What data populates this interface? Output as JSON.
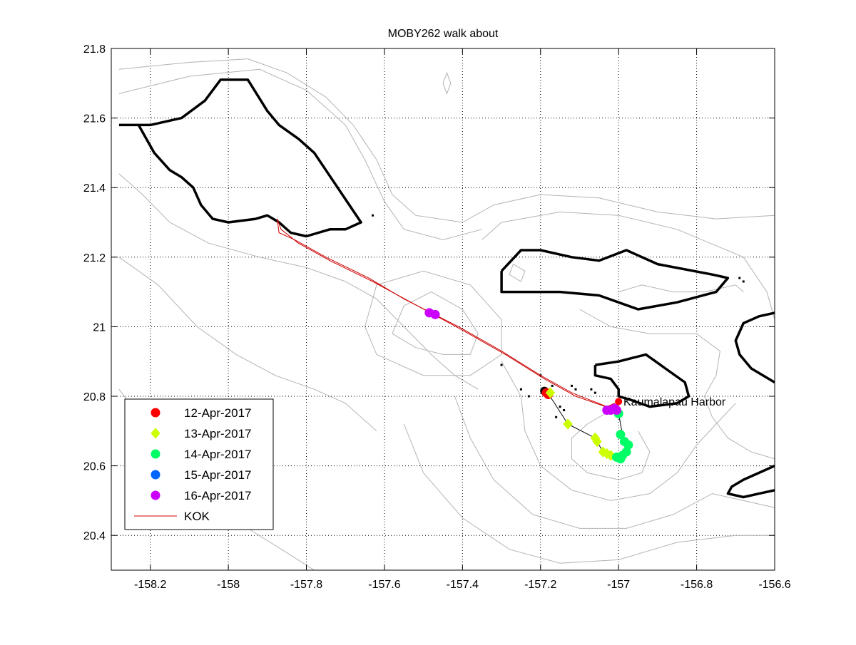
{
  "chart_data": {
    "type": "scatter",
    "title": "MOBY262 walk about",
    "xlabel": "",
    "ylabel": "",
    "xlim": [
      -158.3,
      -156.6
    ],
    "ylim": [
      20.3,
      21.8
    ],
    "xticks": [
      -158.2,
      -158.0,
      -157.8,
      -157.6,
      -157.4,
      -157.2,
      -157.0,
      -156.8,
      -156.6
    ],
    "xtick_labels": [
      "-158.2",
      "-158",
      "-157.8",
      "-157.6",
      "-157.4",
      "-157.2",
      "-157",
      "-156.8",
      "-156.6"
    ],
    "yticks": [
      20.4,
      20.6,
      20.8,
      21.0,
      21.2,
      21.4,
      21.6,
      21.8
    ],
    "ytick_labels": [
      "20.4",
      "20.6",
      "20.8",
      "21",
      "21.2",
      "21.4",
      "21.6",
      "21.8"
    ],
    "grid": true,
    "legend_position": "bottom-left",
    "annotation": {
      "text": "Kaumalapau Harbor",
      "x": -157.0,
      "y": 20.785
    },
    "series": [
      {
        "name": "12-Apr-2017",
        "marker": "circle",
        "color": "#ff0000",
        "points": [
          [
            -157.185,
            20.81
          ],
          [
            -157.18,
            20.805
          ]
        ]
      },
      {
        "name": "13-Apr-2017",
        "marker": "diamond",
        "color": "#ccff00",
        "points": [
          [
            -157.175,
            20.81
          ],
          [
            -157.13,
            20.72
          ],
          [
            -157.06,
            20.68
          ],
          [
            -157.055,
            20.67
          ],
          [
            -157.04,
            20.64
          ],
          [
            -157.03,
            20.635
          ],
          [
            -157.02,
            20.63
          ]
        ]
      },
      {
        "name": "14-Apr-2017",
        "marker": "circle",
        "color": "#00ff66",
        "points": [
          [
            -157.0,
            20.75
          ],
          [
            -156.995,
            20.69
          ],
          [
            -156.985,
            20.67
          ],
          [
            -156.975,
            20.66
          ],
          [
            -156.98,
            20.64
          ],
          [
            -156.99,
            20.63
          ],
          [
            -156.995,
            20.62
          ],
          [
            -157.005,
            20.625
          ]
        ]
      },
      {
        "name": "15-Apr-2017",
        "marker": "circle",
        "color": "#0066ff",
        "points": []
      },
      {
        "name": "16-Apr-2017",
        "marker": "circle",
        "color": "#cc00ff",
        "points": [
          [
            -157.485,
            21.04
          ],
          [
            -157.47,
            21.035
          ],
          [
            -157.03,
            20.76
          ],
          [
            -157.02,
            20.76
          ],
          [
            -157.01,
            20.765
          ],
          [
            -157.005,
            20.76
          ]
        ]
      },
      {
        "name": "KOK",
        "marker": "line",
        "color": "#cc0000",
        "lines": [
          [
            [
              -157.875,
              21.31
            ],
            [
              -157.87,
              21.27
            ],
            [
              -157.83,
              21.25
            ],
            [
              -157.75,
              21.2
            ],
            [
              -157.64,
              21.14
            ],
            [
              -157.55,
              21.08
            ],
            [
              -157.41,
              21.0
            ],
            [
              -157.3,
              20.93
            ],
            [
              -157.2,
              20.86
            ],
            [
              -157.12,
              20.81
            ],
            [
              -157.03,
              20.77
            ],
            [
              -157.0,
              20.785
            ]
          ],
          [
            [
              -157.875,
              21.31
            ],
            [
              -157.865,
              21.28
            ],
            [
              -157.82,
              21.24
            ],
            [
              -157.74,
              21.19
            ],
            [
              -157.63,
              21.13
            ],
            [
              -157.54,
              21.075
            ],
            [
              -157.4,
              20.99
            ],
            [
              -157.29,
              20.92
            ],
            [
              -157.19,
              20.85
            ],
            [
              -157.11,
              20.8
            ],
            [
              -157.02,
              20.765
            ],
            [
              -156.995,
              20.78
            ]
          ]
        ]
      }
    ],
    "track_line": [
      [
        -157.185,
        20.81
      ],
      [
        -157.17,
        20.79
      ],
      [
        -157.13,
        20.72
      ],
      [
        -157.06,
        20.68
      ],
      [
        -157.04,
        20.64
      ],
      [
        -157.02,
        20.63
      ],
      [
        -157.0,
        20.625
      ],
      [
        -156.98,
        20.64
      ],
      [
        -156.975,
        20.66
      ],
      [
        -156.99,
        20.69
      ],
      [
        -157.0,
        20.75
      ],
      [
        -157.02,
        20.76
      ]
    ],
    "coastlines": [
      [
        [
          -158.28,
          21.58
        ],
        [
          -158.23,
          21.58
        ],
        [
          -158.21,
          21.54
        ],
        [
          -158.19,
          21.5
        ],
        [
          -158.15,
          21.45
        ],
        [
          -158.12,
          21.43
        ],
        [
          -158.09,
          21.4
        ],
        [
          -158.07,
          21.35
        ],
        [
          -158.04,
          21.31
        ],
        [
          -158.0,
          21.3
        ],
        [
          -157.93,
          21.31
        ],
        [
          -157.9,
          21.32
        ],
        [
          -157.87,
          21.3
        ],
        [
          -157.84,
          21.27
        ],
        [
          -157.8,
          21.26
        ],
        [
          -157.74,
          21.28
        ],
        [
          -157.7,
          21.28
        ],
        [
          -157.66,
          21.3
        ],
        [
          -157.69,
          21.35
        ],
        [
          -157.72,
          21.4
        ],
        [
          -157.75,
          21.45
        ],
        [
          -157.78,
          21.5
        ],
        [
          -157.82,
          21.54
        ],
        [
          -157.87,
          21.58
        ],
        [
          -157.9,
          21.62
        ],
        [
          -157.95,
          21.71
        ],
        [
          -158.02,
          21.71
        ],
        [
          -158.06,
          21.65
        ],
        [
          -158.12,
          21.6
        ],
        [
          -158.2,
          21.58
        ],
        [
          -158.28,
          21.58
        ]
      ],
      [
        [
          -157.3,
          21.16
        ],
        [
          -157.25,
          21.22
        ],
        [
          -157.2,
          21.22
        ],
        [
          -157.12,
          21.2
        ],
        [
          -157.05,
          21.19
        ],
        [
          -156.98,
          21.22
        ],
        [
          -156.9,
          21.18
        ],
        [
          -156.76,
          21.15
        ],
        [
          -156.72,
          21.14
        ],
        [
          -156.75,
          21.1
        ],
        [
          -156.85,
          21.07
        ],
        [
          -156.95,
          21.05
        ],
        [
          -157.05,
          21.09
        ],
        [
          -157.15,
          21.1
        ],
        [
          -157.25,
          21.1
        ],
        [
          -157.3,
          21.1
        ],
        [
          -157.3,
          21.16
        ]
      ],
      [
        [
          -157.06,
          20.89
        ],
        [
          -157.0,
          20.9
        ],
        [
          -156.93,
          20.92
        ],
        [
          -156.88,
          20.88
        ],
        [
          -156.83,
          20.84
        ],
        [
          -156.82,
          20.8
        ],
        [
          -156.85,
          20.78
        ],
        [
          -156.92,
          20.77
        ],
        [
          -156.97,
          20.79
        ],
        [
          -157.0,
          20.8
        ],
        [
          -157.0,
          20.82
        ],
        [
          -157.02,
          20.85
        ],
        [
          -157.06,
          20.86
        ],
        [
          -157.06,
          20.89
        ]
      ],
      [
        [
          -156.6,
          21.04
        ],
        [
          -156.64,
          21.03
        ],
        [
          -156.68,
          21.01
        ],
        [
          -156.7,
          20.96
        ],
        [
          -156.69,
          20.92
        ],
        [
          -156.66,
          20.88
        ],
        [
          -156.63,
          20.86
        ],
        [
          -156.6,
          20.84
        ]
      ],
      [
        [
          -156.6,
          20.6
        ],
        [
          -156.64,
          20.58
        ],
        [
          -156.68,
          20.56
        ],
        [
          -156.71,
          20.54
        ],
        [
          -156.72,
          20.52
        ],
        [
          -156.68,
          20.51
        ],
        [
          -156.64,
          20.52
        ],
        [
          -156.6,
          20.53
        ]
      ]
    ],
    "bathymetry_contours": [
      [
        [
          -158.28,
          21.74
        ],
        [
          -158.1,
          21.76
        ],
        [
          -157.95,
          21.77
        ],
        [
          -157.85,
          21.73
        ],
        [
          -157.75,
          21.66
        ],
        [
          -157.68,
          21.58
        ],
        [
          -157.62,
          21.48
        ],
        [
          -157.58,
          21.38
        ],
        [
          -157.52,
          21.32
        ],
        [
          -157.4,
          21.3
        ],
        [
          -157.32,
          21.35
        ],
        [
          -157.2,
          21.38
        ],
        [
          -157.05,
          21.37
        ],
        [
          -156.9,
          21.33
        ],
        [
          -156.75,
          21.31
        ],
        [
          -156.6,
          21.32
        ]
      ],
      [
        [
          -158.28,
          21.67
        ],
        [
          -158.1,
          21.72
        ],
        [
          -157.92,
          21.74
        ],
        [
          -157.8,
          21.68
        ],
        [
          -157.7,
          21.58
        ],
        [
          -157.65,
          21.48
        ],
        [
          -157.6,
          21.36
        ],
        [
          -157.55,
          21.28
        ],
        [
          -157.45,
          21.25
        ],
        [
          -157.35,
          21.28
        ]
      ],
      [
        [
          -158.28,
          21.44
        ],
        [
          -158.22,
          21.38
        ],
        [
          -158.15,
          21.3
        ],
        [
          -158.05,
          21.24
        ],
        [
          -157.92,
          21.2
        ],
        [
          -157.8,
          21.17
        ],
        [
          -157.7,
          21.13
        ],
        [
          -157.62,
          21.08
        ],
        [
          -157.55,
          21.0
        ],
        [
          -157.48,
          20.92
        ],
        [
          -157.42,
          20.86
        ],
        [
          -157.36,
          20.82
        ]
      ],
      [
        [
          -158.28,
          21.2
        ],
        [
          -158.18,
          21.12
        ],
        [
          -158.08,
          21.0
        ],
        [
          -157.98,
          20.92
        ],
        [
          -157.88,
          20.86
        ],
        [
          -157.78,
          20.82
        ],
        [
          -157.7,
          20.78
        ],
        [
          -157.62,
          20.7
        ]
      ],
      [
        [
          -158.28,
          20.82
        ],
        [
          -158.2,
          20.7
        ],
        [
          -158.12,
          20.6
        ],
        [
          -158.05,
          20.52
        ],
        [
          -157.95,
          20.42
        ],
        [
          -157.85,
          20.35
        ],
        [
          -157.78,
          20.3
        ]
      ],
      [
        [
          -157.58,
          20.98
        ],
        [
          -157.55,
          21.06
        ],
        [
          -157.48,
          21.1
        ],
        [
          -157.4,
          21.05
        ],
        [
          -157.36,
          20.98
        ],
        [
          -157.38,
          20.92
        ],
        [
          -157.45,
          20.92
        ],
        [
          -157.52,
          20.94
        ],
        [
          -157.58,
          20.98
        ]
      ],
      [
        [
          -157.65,
          21.0
        ],
        [
          -157.62,
          21.12
        ],
        [
          -157.5,
          21.16
        ],
        [
          -157.38,
          21.12
        ],
        [
          -157.3,
          21.02
        ],
        [
          -157.3,
          20.92
        ],
        [
          -157.38,
          20.86
        ],
        [
          -157.5,
          20.86
        ],
        [
          -157.62,
          20.92
        ],
        [
          -157.65,
          21.0
        ]
      ],
      [
        [
          -157.35,
          21.25
        ],
        [
          -157.3,
          21.3
        ],
        [
          -157.15,
          21.33
        ],
        [
          -157.0,
          21.32
        ],
        [
          -156.85,
          21.28
        ],
        [
          -156.68,
          21.2
        ],
        [
          -156.62,
          21.1
        ],
        [
          -156.6,
          21.02
        ]
      ],
      [
        [
          -157.3,
          20.9
        ],
        [
          -157.25,
          20.8
        ],
        [
          -157.24,
          20.7
        ],
        [
          -157.2,
          20.6
        ],
        [
          -157.12,
          20.53
        ],
        [
          -157.02,
          20.5
        ],
        [
          -156.92,
          20.52
        ],
        [
          -156.85,
          20.58
        ],
        [
          -156.8,
          20.66
        ],
        [
          -156.75,
          20.72
        ],
        [
          -156.7,
          20.78
        ]
      ],
      [
        [
          -157.42,
          20.8
        ],
        [
          -157.38,
          20.68
        ],
        [
          -157.32,
          20.56
        ],
        [
          -157.22,
          20.46
        ],
        [
          -157.1,
          20.42
        ],
        [
          -156.98,
          20.42
        ],
        [
          -156.86,
          20.46
        ],
        [
          -156.76,
          20.52
        ],
        [
          -156.68,
          20.5
        ],
        [
          -156.6,
          20.48
        ]
      ],
      [
        [
          -157.55,
          20.72
        ],
        [
          -157.5,
          20.58
        ],
        [
          -157.4,
          20.45
        ],
        [
          -157.28,
          20.36
        ],
        [
          -157.15,
          20.32
        ],
        [
          -157.0,
          20.33
        ],
        [
          -156.85,
          20.38
        ],
        [
          -156.7,
          20.4
        ],
        [
          -156.6,
          20.4
        ]
      ],
      [
        [
          -157.1,
          21.05
        ],
        [
          -157.02,
          21.0
        ],
        [
          -156.92,
          20.98
        ],
        [
          -156.8,
          20.98
        ],
        [
          -156.74,
          20.93
        ],
        [
          -156.75,
          20.86
        ],
        [
          -156.78,
          20.8
        ],
        [
          -156.76,
          20.74
        ],
        [
          -156.72,
          20.68
        ],
        [
          -156.66,
          20.64
        ],
        [
          -156.6,
          20.62
        ]
      ],
      [
        [
          -157.45,
          21.7
        ],
        [
          -157.44,
          21.67
        ],
        [
          -157.43,
          21.7
        ],
        [
          -157.44,
          21.73
        ],
        [
          -157.45,
          21.7
        ]
      ],
      [
        [
          -157.28,
          21.15
        ],
        [
          -157.25,
          21.13
        ],
        [
          -157.24,
          21.16
        ],
        [
          -157.27,
          21.18
        ],
        [
          -157.28,
          21.15
        ]
      ],
      [
        [
          -157.0,
          21.1
        ],
        [
          -156.94,
          21.12
        ],
        [
          -156.86,
          21.1
        ],
        [
          -156.78,
          21.1
        ],
        [
          -156.7,
          21.12
        ],
        [
          -156.68,
          21.1
        ]
      ],
      [
        [
          -157.02,
          20.76
        ],
        [
          -157.08,
          20.72
        ],
        [
          -157.12,
          20.68
        ],
        [
          -157.12,
          20.62
        ],
        [
          -157.08,
          20.58
        ],
        [
          -157.0,
          20.56
        ],
        [
          -156.94,
          20.58
        ],
        [
          -156.92,
          20.64
        ],
        [
          -156.95,
          20.7
        ]
      ]
    ],
    "stray_points": [
      [
        -157.72,
        21.4
      ],
      [
        -157.63,
        21.32
      ],
      [
        -157.3,
        20.89
      ],
      [
        -157.2,
        20.86
      ],
      [
        -157.17,
        20.83
      ],
      [
        -157.12,
        20.83
      ],
      [
        -157.11,
        20.82
      ],
      [
        -157.07,
        20.82
      ],
      [
        -157.06,
        20.81
      ],
      [
        -157.25,
        20.82
      ],
      [
        -157.23,
        20.8
      ],
      [
        -157.15,
        20.77
      ],
      [
        -157.14,
        20.76
      ],
      [
        -157.16,
        20.74
      ],
      [
        -156.68,
        21.13
      ],
      [
        -156.69,
        21.14
      ]
    ]
  }
}
